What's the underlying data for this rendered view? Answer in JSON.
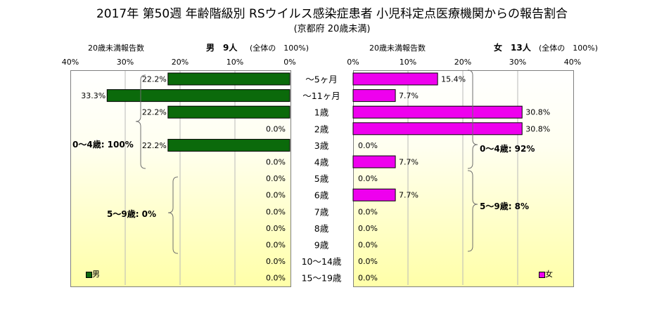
{
  "title": "2017年 第50週 年齢階級別 RSウイルス感染症患者 小児科定点医療機関からの報告割合",
  "subtitle": "(京都府 20歳未満)",
  "left_header": {
    "report_label": "20歳未満報告数",
    "sex_count": "男　9人",
    "total_note": "(全体の　100%)"
  },
  "right_header": {
    "report_label": "20歳未満報告数",
    "sex_count": "女　13人",
    "total_note": "(全体の　100%)"
  },
  "left_ticks": [
    "40%",
    "30%",
    "20%",
    "10%",
    "0%"
  ],
  "right_ticks": [
    "0%",
    "10%",
    "20%",
    "30%",
    "40%"
  ],
  "colors": {
    "male": "#0b6a0b",
    "female": "#ee00ee",
    "bar_border": "#000000",
    "grid": "#b8b8b8"
  },
  "annotations": {
    "male_0_4": "0〜4歳: 100%",
    "male_5_9": "5〜9歳: 0%",
    "female_0_4": "0〜4歳: 92%",
    "female_5_9": "5〜9歳: 8%"
  },
  "chart_data": [
    {
      "type": "bar",
      "orientation": "horizontal",
      "series": [
        {
          "name": "男",
          "values": [
            22.2,
            33.3,
            22.2,
            0.0,
            22.2,
            0.0,
            0.0,
            0.0,
            0.0,
            0.0,
            0.0,
            0.0,
            0.0
          ]
        }
      ],
      "value_labels": [
        "22.2%",
        "33.3%",
        "22.2%",
        "0.0%",
        "22.2%",
        "0.0%",
        "0.0%",
        "0.0%",
        "0.0%",
        "0.0%",
        "0.0%",
        "0.0%",
        "0.0%"
      ],
      "categories": [
        "〜5ヶ月",
        "〜11ヶ月",
        "1歳",
        "2歳",
        "3歳",
        "4歳",
        "5歳",
        "6歳",
        "7歳",
        "8歳",
        "9歳",
        "10〜14歳",
        "15〜19歳"
      ],
      "xlim": [
        0,
        40
      ],
      "direction": "reversed",
      "grid": true,
      "legend": "bottom-left"
    },
    {
      "type": "bar",
      "orientation": "horizontal",
      "series": [
        {
          "name": "女",
          "values": [
            15.4,
            7.7,
            30.8,
            30.8,
            0.0,
            7.7,
            0.0,
            7.7,
            0.0,
            0.0,
            0.0,
            0.0,
            0.0
          ]
        }
      ],
      "value_labels": [
        "15.4%",
        "7.7%",
        "30.8%",
        "30.8%",
        "0.0%",
        "7.7%",
        "0.0%",
        "7.7%",
        "0.0%",
        "0.0%",
        "0.0%",
        "0.0%",
        "0.0%"
      ],
      "categories": [
        "〜5ヶ月",
        "〜11ヶ月",
        "1歳",
        "2歳",
        "3歳",
        "4歳",
        "5歳",
        "6歳",
        "7歳",
        "8歳",
        "9歳",
        "10〜14歳",
        "15〜19歳"
      ],
      "xlim": [
        0,
        40
      ],
      "grid": true,
      "legend": "bottom-right"
    }
  ]
}
